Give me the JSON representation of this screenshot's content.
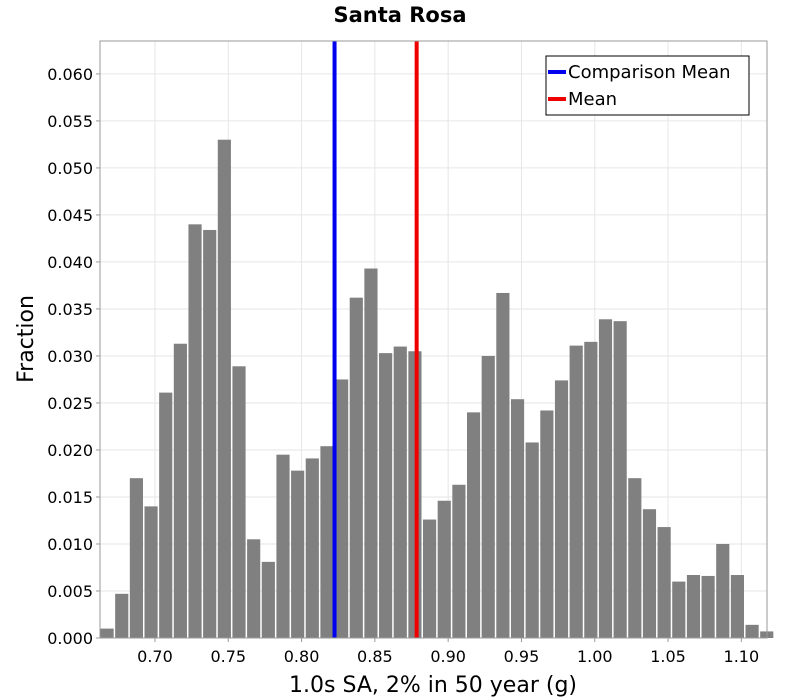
{
  "chart_data": {
    "type": "bar",
    "title": "Santa Rosa",
    "xlabel": "1.0s SA, 2% in 50 year (g)",
    "ylabel": "Fraction",
    "xlim": [
      0.6625,
      1.1175
    ],
    "ylim": [
      0,
      0.0635
    ],
    "xticks": [
      0.7,
      0.75,
      0.8,
      0.85,
      0.9,
      0.95,
      1.0,
      1.05,
      1.1
    ],
    "xtick_labels": [
      "0.70",
      "0.75",
      "0.80",
      "0.85",
      "0.90",
      "0.95",
      "1.00",
      "1.05",
      "1.10"
    ],
    "yticks": [
      0,
      0.005,
      0.01,
      0.015,
      0.02,
      0.025,
      0.03,
      0.035,
      0.04,
      0.045,
      0.05,
      0.055,
      0.06
    ],
    "ytick_labels": [
      "0.000",
      "0.005",
      "0.010",
      "0.015",
      "0.020",
      "0.025",
      "0.030",
      "0.035",
      "0.040",
      "0.045",
      "0.050",
      "0.055",
      "0.060"
    ],
    "bin_width": 0.01,
    "bin_start": 0.6625,
    "values": [
      0.001,
      0.0047,
      0.017,
      0.014,
      0.0261,
      0.0313,
      0.044,
      0.0434,
      0.053,
      0.0289,
      0.0105,
      0.0081,
      0.0195,
      0.0178,
      0.0191,
      0.0204,
      0.0275,
      0.0362,
      0.0393,
      0.0303,
      0.031,
      0.0305,
      0.0126,
      0.0146,
      0.0163,
      0.024,
      0.03,
      0.0367,
      0.0254,
      0.0208,
      0.0242,
      0.0274,
      0.0311,
      0.0315,
      0.0339,
      0.0337,
      0.017,
      0.0137,
      0.0118,
      0.006,
      0.0067,
      0.0066,
      0.01,
      0.0067,
      0.0014,
      0.0007
    ],
    "vlines": [
      {
        "name": "Comparison Mean",
        "x": 0.8225,
        "color": "#0000ee"
      },
      {
        "name": "Mean",
        "x": 0.8785,
        "color": "#ee0000"
      }
    ],
    "bar_color": "#808080",
    "grid": true,
    "legend_position": "top-right"
  }
}
